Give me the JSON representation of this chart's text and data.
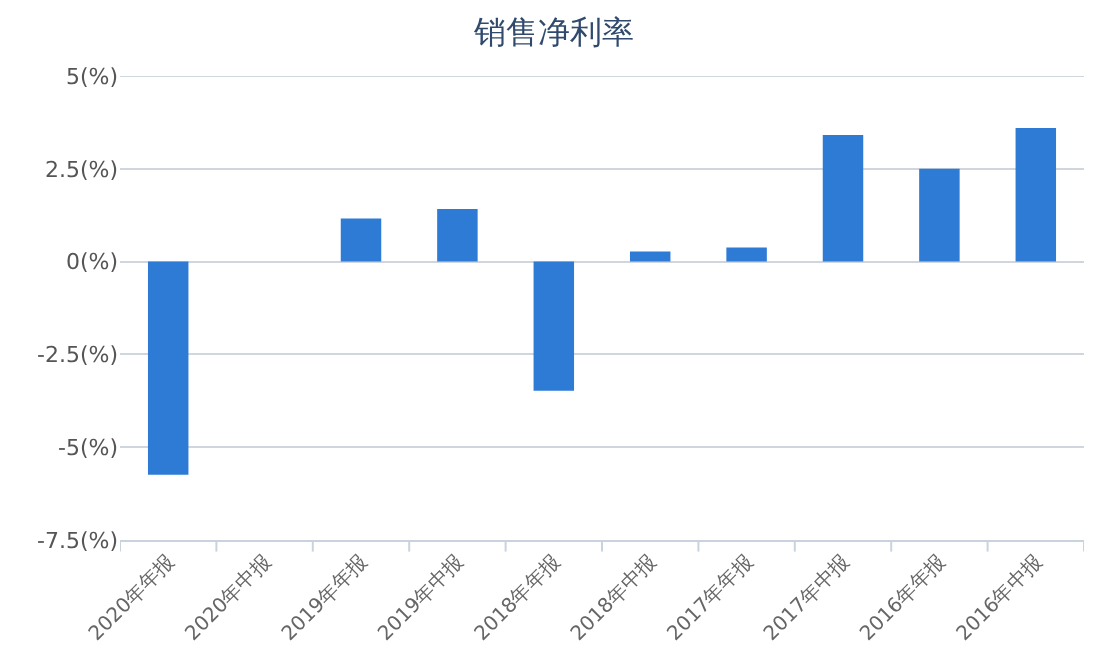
{
  "chart_data": {
    "type": "bar",
    "title": "销售净利率",
    "categories": [
      "2020年年报",
      "2020年中报",
      "2019年年报",
      "2019年中报",
      "2018年年报",
      "2018年中报",
      "2017年年报",
      "2017年中报",
      "2016年年报",
      "2016年中报"
    ],
    "values": [
      -5.74,
      0.0,
      1.16,
      1.42,
      -3.48,
      0.27,
      0.38,
      3.41,
      2.5,
      3.6
    ],
    "color": "#2e7bd6",
    "ylim": [
      -7.5,
      5
    ],
    "yticks": [
      {
        "value": -7.5,
        "label": "-7.5(%)"
      },
      {
        "value": -5,
        "label": "-5(%)"
      },
      {
        "value": -2.5,
        "label": "-2.5(%)"
      },
      {
        "value": 0,
        "label": "0(%)"
      },
      {
        "value": 2.5,
        "label": "2.5(%)"
      },
      {
        "value": 5,
        "label": "5(%)"
      }
    ],
    "grid": "y"
  }
}
